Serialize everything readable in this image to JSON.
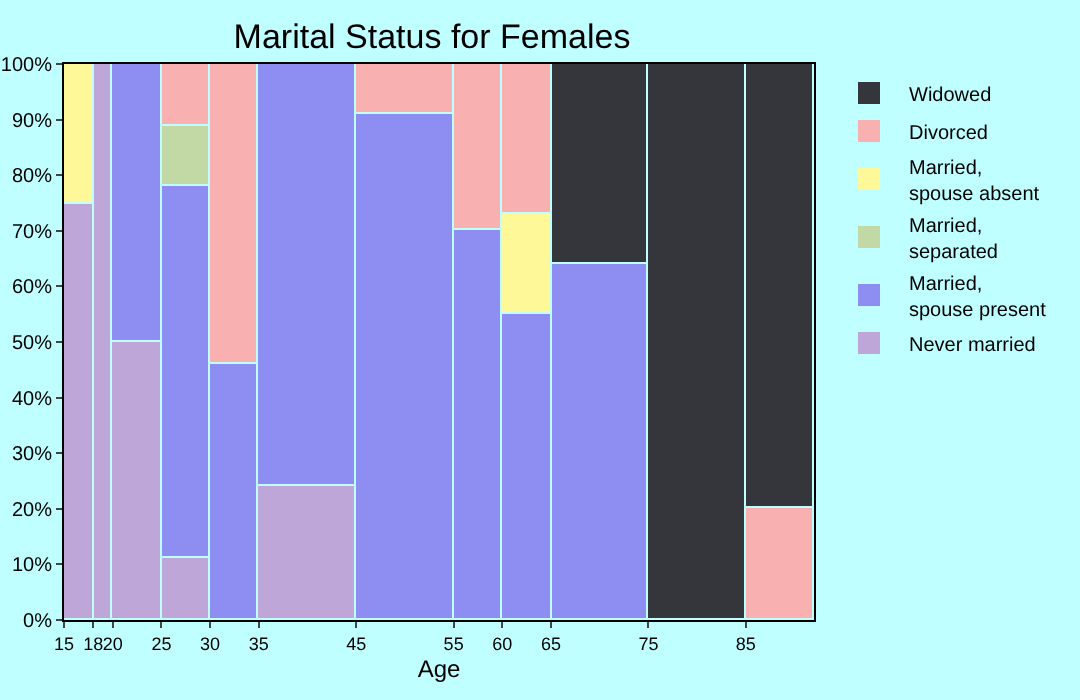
{
  "chart_data": {
    "type": "bar",
    "stacked": true,
    "title": "Marital Status for Females",
    "xlabel": "Age",
    "x": [
      16.5,
      19,
      22.5,
      27.5,
      32.5,
      40,
      50,
      57.5,
      62.5,
      70,
      80,
      88.5
    ],
    "xlim": [
      15,
      92
    ],
    "xticks": [
      15,
      18,
      20,
      25,
      30,
      35,
      45,
      55,
      60,
      65,
      75,
      85
    ],
    "ylim": [
      0,
      100
    ],
    "yticks": [
      {
        "value": 0,
        "label": "0%"
      },
      {
        "value": 10,
        "label": "10%"
      },
      {
        "value": 20,
        "label": "20%"
      },
      {
        "value": 30,
        "label": "30%"
      },
      {
        "value": 40,
        "label": "40%"
      },
      {
        "value": 50,
        "label": "50%"
      },
      {
        "value": 60,
        "label": "60%"
      },
      {
        "value": 70,
        "label": "70%"
      },
      {
        "value": 80,
        "label": "80%"
      },
      {
        "value": 90,
        "label": "90%"
      },
      {
        "value": 100,
        "label": "100%"
      }
    ],
    "legend": "right",
    "series": [
      {
        "name": "Never married",
        "color": "#bea6d8",
        "values": [
          75,
          100,
          50,
          11,
          null,
          24,
          null,
          null,
          null,
          null,
          null,
          null
        ]
      },
      {
        "name": "Married, spouse present",
        "color": "#8e8ef2",
        "values": [
          null,
          null,
          50,
          67,
          46,
          76,
          91,
          70,
          55,
          64,
          null,
          null
        ]
      },
      {
        "name": "Married, separated",
        "color": "#c2d9a5",
        "values": [
          null,
          null,
          null,
          11,
          null,
          null,
          null,
          null,
          null,
          null,
          null,
          null
        ]
      },
      {
        "name": "Married, spouse absent",
        "color": "#fff899",
        "values": [
          25,
          null,
          null,
          null,
          null,
          null,
          null,
          null,
          18,
          null,
          null,
          null
        ]
      },
      {
        "name": "Divorced",
        "color": "#f8b0b0",
        "values": [
          null,
          null,
          null,
          11,
          54,
          null,
          9,
          30,
          27,
          null,
          null,
          20
        ]
      },
      {
        "name": "Widowed",
        "color": "#35363c",
        "values": [
          null,
          null,
          null,
          null,
          null,
          null,
          null,
          null,
          null,
          36,
          100,
          80
        ]
      }
    ]
  }
}
